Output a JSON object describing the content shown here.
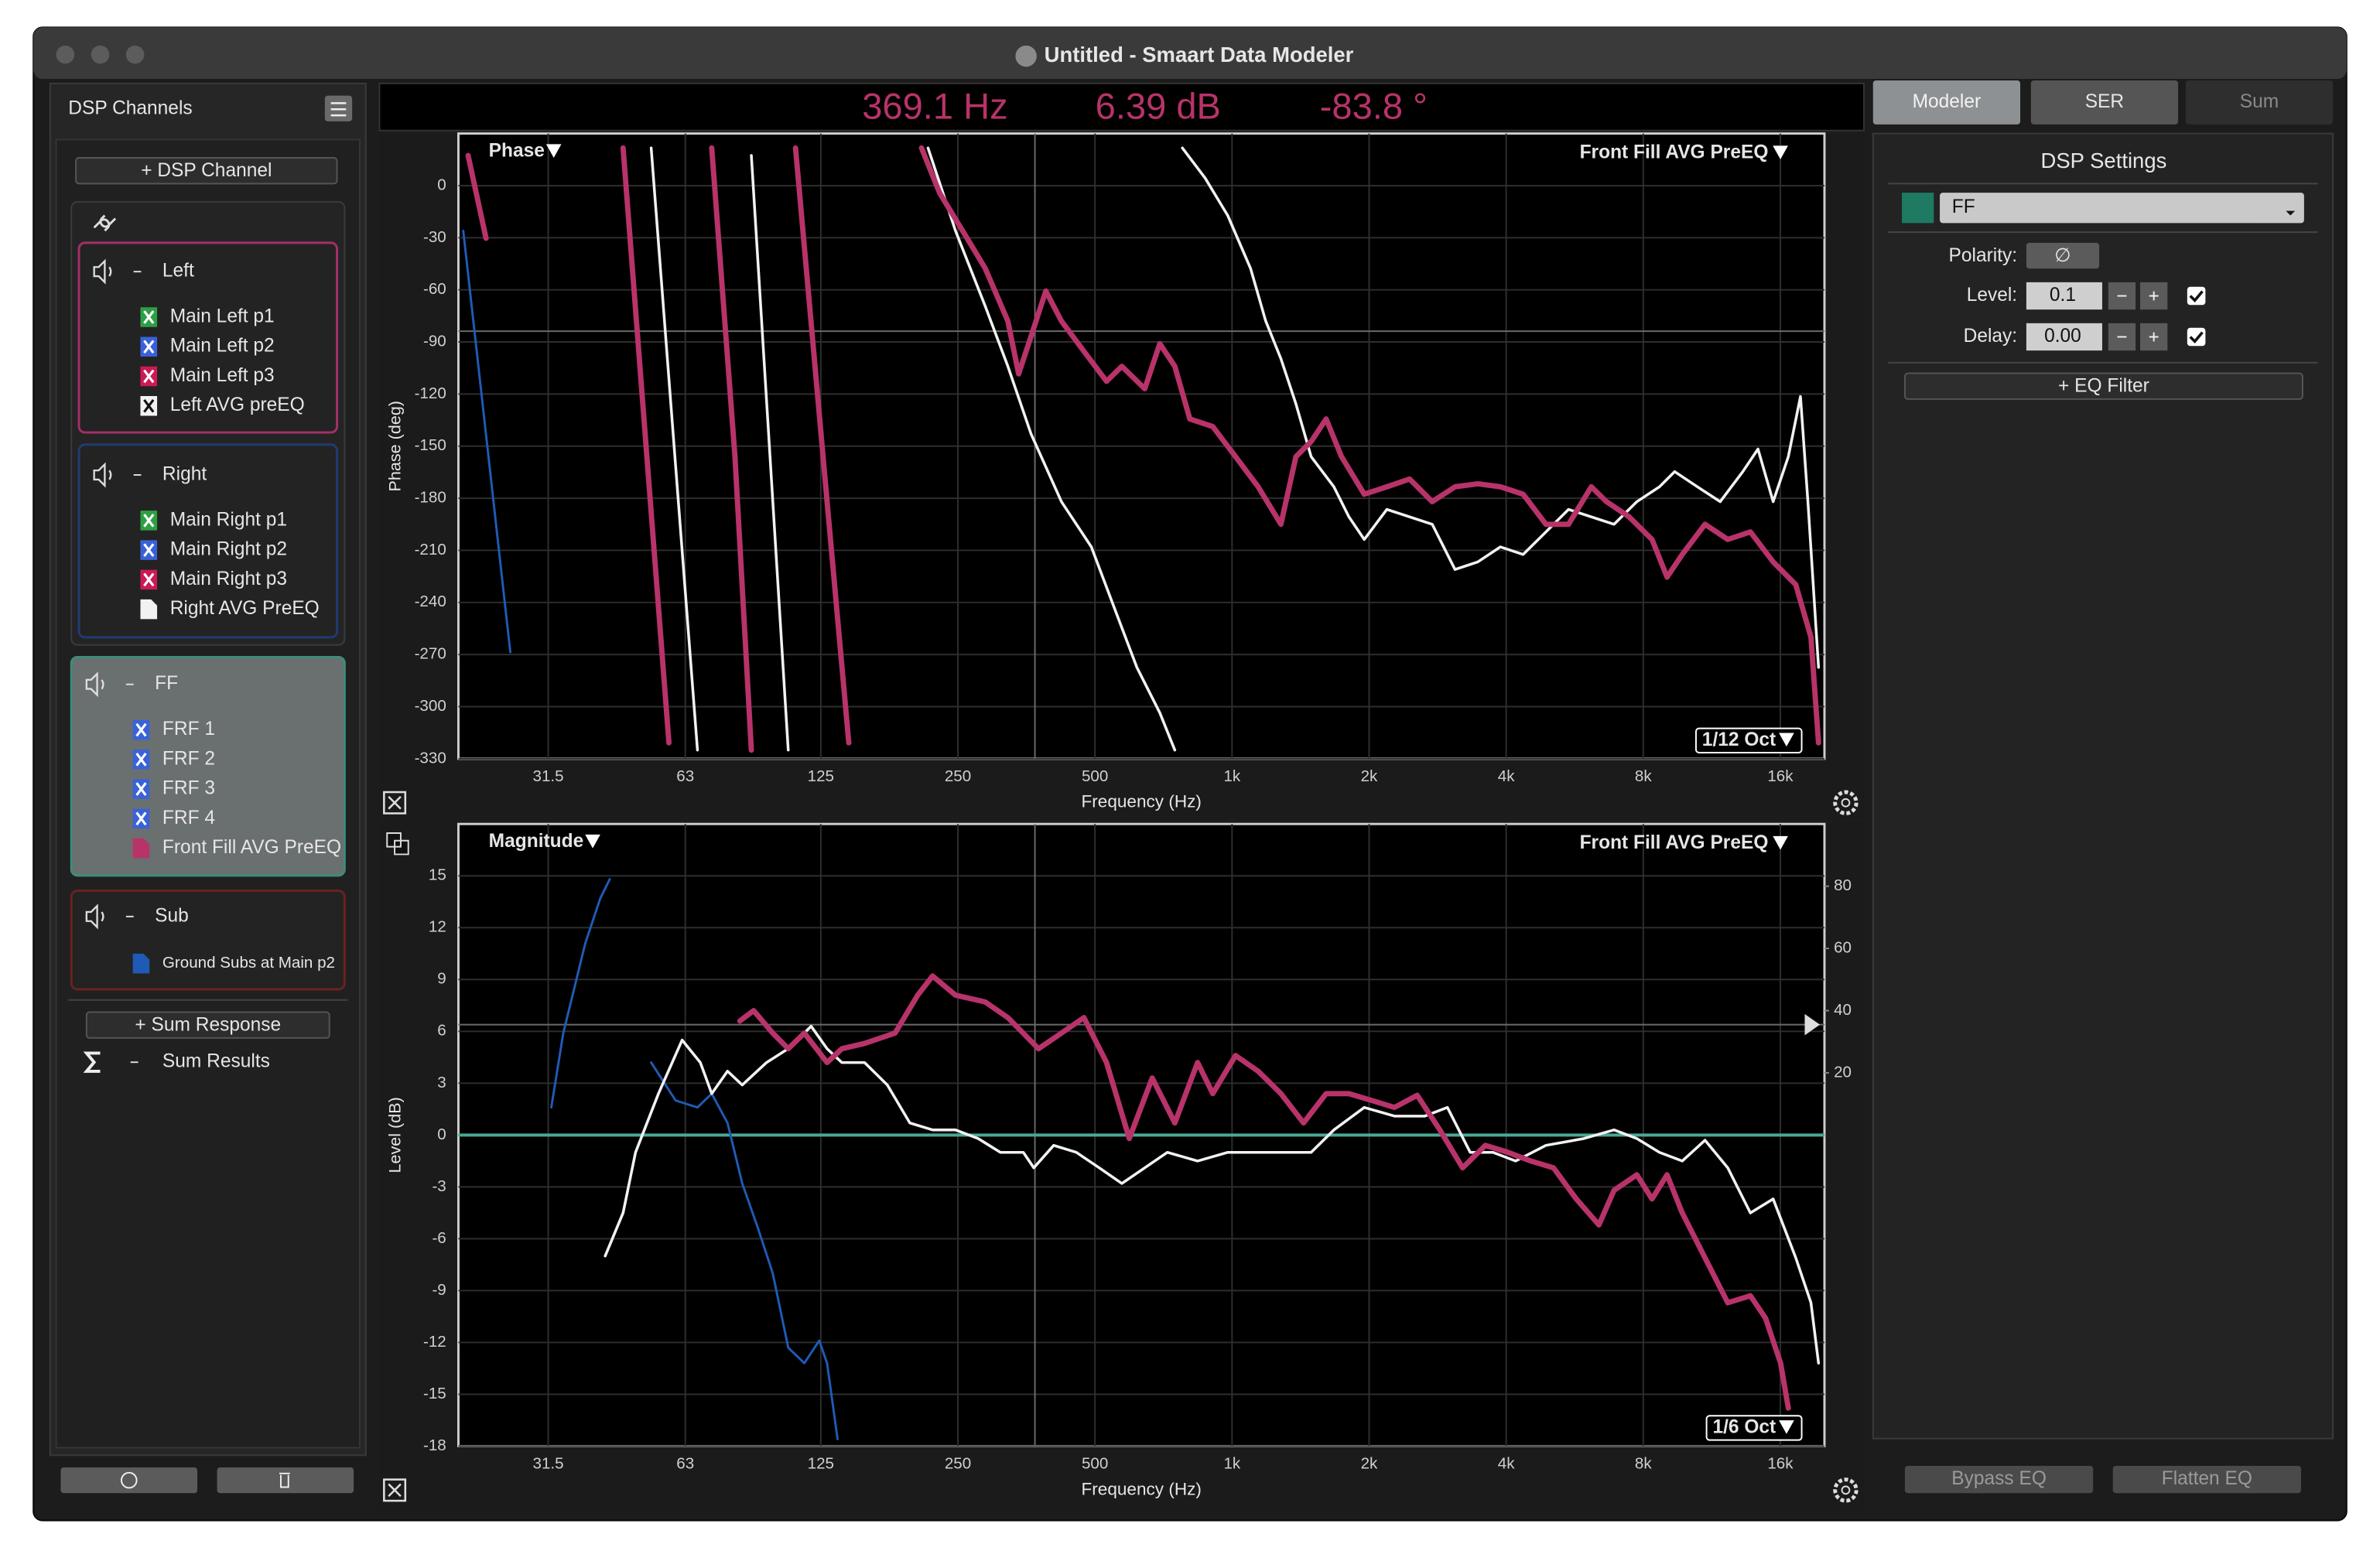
{
  "window": {
    "title": "Untitled - Smaart Data Modeler"
  },
  "sidebar": {
    "title": "DSP Channels",
    "add_button": "+ DSP Channel",
    "groups": [
      {
        "name": "Left",
        "color": "#a3306a",
        "items": [
          {
            "label": "Main Left p1",
            "color": "#2ea043",
            "icon": "x"
          },
          {
            "label": "Main Left p2",
            "color": "#3a62d8",
            "icon": "x"
          },
          {
            "label": "Main Left p3",
            "color": "#cc1a55",
            "icon": "x"
          },
          {
            "label": "Left AVG preEQ",
            "color": "#f2f2f2",
            "icon": "x"
          }
        ]
      },
      {
        "name": "Right",
        "color": "#1f3c73",
        "items": [
          {
            "label": "Main Right p1",
            "color": "#2ea043",
            "icon": "x"
          },
          {
            "label": "Main Right p2",
            "color": "#3a62d8",
            "icon": "x"
          },
          {
            "label": "Main Right p3",
            "color": "#cc1a55",
            "icon": "x"
          },
          {
            "label": "Right AVG PreEQ",
            "color": "#f2f2f2",
            "icon": "page"
          }
        ]
      },
      {
        "name": "FF",
        "color": "#3d8d7a",
        "items": [
          {
            "label": "FRF 1",
            "color": "#3a62d8",
            "icon": "x"
          },
          {
            "label": "FRF 2",
            "color": "#3a62d8",
            "icon": "x"
          },
          {
            "label": "FRF 3",
            "color": "#3a62d8",
            "icon": "x"
          },
          {
            "label": "FRF 4",
            "color": "#3a62d8",
            "icon": "x"
          },
          {
            "label": "Front Fill AVG PreEQ",
            "color": "#b8336a",
            "icon": "page"
          }
        ]
      },
      {
        "name": "Sub",
        "color": "#6b2222",
        "items": [
          {
            "label": "Ground Subs at Main p2",
            "color": "#1f5bb5",
            "icon": "page"
          }
        ]
      }
    ],
    "sum_button": "+ Sum Response",
    "sum_results": "Sum Results"
  },
  "readout": [
    {
      "value": 369.1,
      "label": "369.1 Hz"
    },
    {
      "value": 6.39,
      "label": "6.39 dB"
    },
    {
      "value": -83.8,
      "label": "-83.8 °"
    }
  ],
  "tabs": [
    "Modeler",
    "SER",
    "Sum"
  ],
  "dsp_settings": {
    "title": "DSP Settings",
    "channel": "FF",
    "channel_color": "#1e7a62",
    "polarity_label": "Polarity:",
    "polarity": "∅",
    "level_label": "Level:",
    "level": "0.1",
    "delay_label": "Delay:",
    "delay": "0.00",
    "eq_button": "+ EQ Filter"
  },
  "bottom_buttons": [
    "Bypass EQ",
    "Flatten EQ"
  ],
  "chart_data": [
    {
      "type": "line",
      "title": "Phase",
      "subtitle": "Front Fill AVG PreEQ",
      "resolution": "1/12 Oct",
      "x_label": "Frequency (Hz)",
      "y_label": "Phase (deg)",
      "xscale": "log",
      "grid": true,
      "xlim": [
        20,
        20000
      ],
      "ylim": [
        -330,
        30
      ],
      "xticks": [
        31.5,
        63,
        125,
        250,
        500,
        {
          "value": 1000,
          "label": "1k"
        },
        {
          "value": 2000,
          "label": "2k"
        },
        {
          "value": 4000,
          "label": "4k"
        },
        {
          "value": 8000,
          "label": "8k"
        },
        {
          "value": 16000,
          "label": "16k"
        }
      ],
      "yticks": [
        0,
        -30,
        -60,
        -90,
        -120,
        -150,
        -180,
        -210,
        -240,
        -270,
        -300,
        -330
      ],
      "series": [
        {
          "color": "#1f5bb5",
          "width": 1.5,
          "x": [
            20.5,
            26
          ],
          "values": [
            -26,
            -268.7
          ]
        },
        {
          "color": "#b8336a",
          "width": 3.5,
          "x": [
            21,
            23,
            null,
            46,
            58,
            null,
            72,
            81,
            88,
            null,
            110,
            129,
            144
          ],
          "values": [
            17.3,
            -30.3,
            null,
            21.7,
            -320.8,
            null,
            21.7,
            -156,
            -325,
            null,
            21.7,
            -182,
            -320.8
          ]
        },
        {
          "color": "#f2f2f2",
          "width": 1.8,
          "x": [
            53,
            67,
            null,
            88,
            106,
            null,
            215,
            247,
            287,
            322,
            362,
            422,
            491,
            551,
            618,
            694,
            749
          ],
          "values": [
            21.7,
            -325,
            null,
            17.3,
            -325,
            null,
            21.7,
            -26,
            -69.4,
            -104,
            -143,
            -182,
            -208,
            -242.8,
            -277.4,
            -303.5,
            -325
          ]
        },
        {
          "color": "#f2f2f2",
          "width": 1.8,
          "x": [
            778,
            873,
            979,
            1098,
            1186,
            1280,
            1382,
            1492,
            1674,
            1806,
            1951,
            2188,
            2454,
            2753,
            3089,
            3465,
            3886,
            4360,
            4890,
            5484,
            6152,
            6902,
            7744,
            8682,
            9378,
            10520,
            11800,
            13232,
            14290,
            15424,
            16656,
            17710,
            18394,
            19416
          ],
          "values": [
            21.7,
            4.3,
            -17.3,
            -47.7,
            -78,
            -99.7,
            -125.7,
            -156,
            -173.4,
            -190.7,
            -203.7,
            -186.4,
            -190.7,
            -195,
            -221,
            -216.7,
            -208,
            -212.4,
            -199.4,
            -186.4,
            -190.7,
            -195,
            -182,
            -173.4,
            -164.7,
            -173.4,
            -182,
            -164.7,
            -151.7,
            -182,
            -156,
            -121.4,
            -182,
            -277.4
          ]
        },
        {
          "color": "#b8336a",
          "width": 3.5,
          "x": [
            208,
            228,
            256,
            287,
            322,
            340,
            362,
            390,
            422,
            473,
            530,
            573,
            643,
            694,
            749,
            808,
            907,
            1018,
            1141,
            1280,
            1382,
            1492,
            1610,
            1739,
            1951,
            2188,
            2454,
            2753,
            3089,
            3465,
            3886,
            4360,
            4890,
            5484,
            6152,
            6644,
            7450,
            8360,
            9026,
            9744,
            10930,
            12264,
            13752,
            15424,
            17304,
            18680,
            19416
          ],
          "values": [
            21.7,
            -4.3,
            -26,
            -47.7,
            -78,
            -108.4,
            -86.7,
            -60.7,
            -78,
            -95.4,
            -112.7,
            -104,
            -117,
            -91,
            -104,
            -134.4,
            -138.7,
            -156,
            -173.4,
            -195,
            -156,
            -147.4,
            -134.4,
            -156,
            -177.7,
            -173.4,
            -169,
            -182,
            -173.4,
            -171.7,
            -173.4,
            -177.7,
            -195,
            -195,
            -173.4,
            -182,
            -190.7,
            -203.7,
            -225.4,
            -212.4,
            -195,
            -203.7,
            -199.4,
            -216.7,
            -229.8,
            -260,
            -320.8
          ]
        }
      ]
    },
    {
      "type": "line",
      "title": "Magnitude",
      "subtitle": "Front Fill AVG PreEQ",
      "resolution": "1/6 Oct",
      "x_label": "Frequency (Hz)",
      "y_label": "Level (dB)",
      "xscale": "log",
      "grid": true,
      "xlim": [
        20,
        20000
      ],
      "ylim": [
        -18,
        18
      ],
      "y2lim": [
        -100,
        100
      ],
      "xticks": [
        31.5,
        63,
        125,
        250,
        500,
        {
          "value": 1000,
          "label": "1k"
        },
        {
          "value": 2000,
          "label": "2k"
        },
        {
          "value": 4000,
          "label": "4k"
        },
        {
          "value": 8000,
          "label": "8k"
        },
        {
          "value": 16000,
          "label": "16k"
        }
      ],
      "yticks": [
        15,
        12,
        9,
        6,
        3,
        0,
        -3,
        -6,
        -9,
        -12,
        -15,
        -18
      ],
      "y2ticks": [
        80,
        60,
        40,
        20
      ],
      "series": [
        {
          "color": "#4aa894",
          "width": 2,
          "x": [
            20,
            20000
          ],
          "values": [
            0,
            0
          ]
        },
        {
          "color": "#1f5bb5",
          "width": 1.5,
          "x": [
            32,
            34,
            38,
            41,
            43,
            null,
            53,
            60,
            67,
            72,
            78,
            84,
            91,
            98,
            106,
            115,
            124,
            129,
            136
          ],
          "values": [
            1.6,
            5.9,
            11.1,
            13.7,
            14.8,
            null,
            4.2,
            2.0,
            1.6,
            2.4,
            0.7,
            -2.8,
            -5.4,
            -8.0,
            -12.3,
            -13.2,
            -11.9,
            -13.2,
            -17.6
          ]
        },
        {
          "color": "#f2f2f2",
          "width": 1.8,
          "x": [
            42,
            46,
            49,
            55,
            62,
            68,
            72,
            78,
            84,
            95,
            106,
            119,
            129,
            139,
            156,
            175,
            196,
            220,
            247,
            277,
            310,
            348,
            367,
            406,
            455,
            511,
            573,
            643,
            721,
            840,
            979,
            1141,
            1330,
            1492,
            1674,
            1951,
            2274,
            2650,
            2972,
            3334,
            3740,
            4196,
            4890,
            5923,
            6902,
            7744,
            8682,
            9744,
            10930,
            12264,
            13752,
            15424,
            17304,
            18680,
            19416
          ],
          "values": [
            -7.0,
            -4.5,
            -1.0,
            2.4,
            5.5,
            4.2,
            2.4,
            3.7,
            2.9,
            4.2,
            5.0,
            6.3,
            5.0,
            4.2,
            4.2,
            2.9,
            0.7,
            0.3,
            0.3,
            -0.2,
            -1.0,
            -1.0,
            -1.9,
            -0.6,
            -1.0,
            -1.9,
            -2.8,
            -1.9,
            -1.0,
            -1.5,
            -1.0,
            -1.0,
            -1.0,
            -1.0,
            0.3,
            1.6,
            1.1,
            1.1,
            1.6,
            -1.0,
            -1.0,
            -1.5,
            -0.6,
            -0.2,
            0.3,
            -0.2,
            -1.0,
            -1.5,
            -0.3,
            -1.9,
            -4.5,
            -3.7,
            -7.1,
            -9.7,
            -13.2
          ]
        },
        {
          "color": "#b8336a",
          "width": 3.5,
          "x": [
            83,
            89,
            98,
            106,
            115,
            129,
            139,
            156,
            182,
            204,
            220,
            247,
            287,
            322,
            376,
            422,
            473,
            530,
            595,
            668,
            749,
            840,
            907,
            1018,
            1141,
            1280,
            1436,
            1610,
            1806,
            2027,
            2274,
            2550,
            2860,
            3209,
            3600,
            4038,
            4529,
            5082,
            5700,
            6392,
            6902,
            7744,
            8360,
            9026,
            9744,
            10930,
            12264,
            13752,
            14848,
            16026,
            16656
          ],
          "values": [
            6.6,
            7.2,
            5.9,
            5.0,
            5.9,
            4.2,
            5.0,
            5.3,
            5.9,
            8.1,
            9.2,
            8.1,
            7.7,
            6.8,
            5.0,
            5.9,
            6.8,
            4.2,
            -0.2,
            3.3,
            0.7,
            4.2,
            2.4,
            4.6,
            3.7,
            2.4,
            0.7,
            2.4,
            2.4,
            2.0,
            1.6,
            2.3,
            0.3,
            -1.9,
            -0.6,
            -1.0,
            -1.5,
            -1.9,
            -3.7,
            -5.2,
            -3.2,
            -2.3,
            -3.7,
            -2.3,
            -4.5,
            -7.1,
            -9.7,
            -9.3,
            -10.6,
            -13.2,
            -15.8
          ]
        }
      ]
    }
  ]
}
